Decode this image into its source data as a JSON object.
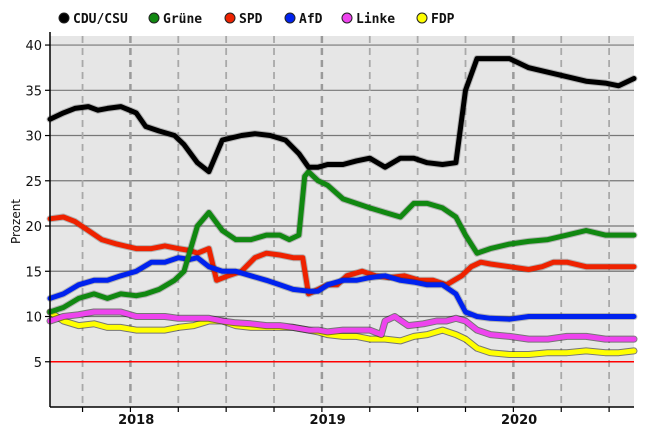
{
  "chart_data": {
    "type": "line",
    "title": "",
    "xlabel": "",
    "ylabel": "Prozent",
    "xlim": [
      2017.55,
      2020.6
    ],
    "ylim": [
      0,
      41
    ],
    "yticks": [
      5,
      10,
      15,
      20,
      25,
      30,
      35,
      40
    ],
    "xtick_labels": [
      {
        "label": "2018",
        "x": 2018.0
      },
      {
        "label": "2019",
        "x": 2019.0
      },
      {
        "label": "2020",
        "x": 2020.0
      }
    ],
    "vertical_dashed_lines": [
      2017.72,
      2017.97,
      2018.22,
      2018.47,
      2018.72,
      2018.97,
      2019.22,
      2019.47,
      2019.72,
      2019.97,
      2020.22,
      2020.47
    ],
    "reference_line": {
      "y": 5,
      "color": "#ff0000"
    },
    "background_color": "#e6e6e6",
    "legend_position": "top",
    "series": [
      {
        "name": "CDU/CSU",
        "color": "#000000",
        "x": [
          2017.55,
          2017.62,
          2017.68,
          2017.75,
          2017.8,
          2017.85,
          2017.92,
          2018.0,
          2018.05,
          2018.12,
          2018.2,
          2018.25,
          2018.32,
          2018.38,
          2018.45,
          2018.55,
          2018.62,
          2018.7,
          2018.78,
          2018.85,
          2018.9,
          2018.95,
          2019.0,
          2019.08,
          2019.15,
          2019.22,
          2019.3,
          2019.38,
          2019.45,
          2019.52,
          2019.6,
          2019.67,
          2019.72,
          2019.78,
          2019.85,
          2019.95,
          2020.05,
          2020.15,
          2020.25,
          2020.35,
          2020.45,
          2020.52,
          2020.6
        ],
        "y": [
          31.8,
          32.5,
          33.0,
          33.2,
          32.8,
          33.0,
          33.2,
          32.5,
          31.0,
          30.5,
          30.0,
          29.0,
          27.0,
          26.0,
          29.5,
          30.0,
          30.2,
          30.0,
          29.5,
          28.0,
          26.5,
          26.5,
          26.8,
          26.8,
          27.2,
          27.5,
          26.5,
          27.5,
          27.5,
          27.0,
          26.8,
          27.0,
          35.0,
          38.5,
          38.5,
          38.5,
          37.5,
          37.0,
          36.5,
          36.0,
          35.8,
          35.5,
          36.3
        ]
      },
      {
        "name": "Grüne",
        "color": "#118811",
        "x": [
          2017.55,
          2017.62,
          2017.7,
          2017.78,
          2017.85,
          2017.92,
          2018.0,
          2018.05,
          2018.12,
          2018.2,
          2018.25,
          2018.32,
          2018.38,
          2018.45,
          2018.52,
          2018.6,
          2018.68,
          2018.75,
          2018.8,
          2018.85,
          2018.88,
          2018.9,
          2018.95,
          2019.0,
          2019.08,
          2019.15,
          2019.22,
          2019.3,
          2019.38,
          2019.45,
          2019.52,
          2019.6,
          2019.67,
          2019.72,
          2019.78,
          2019.85,
          2019.95,
          2020.05,
          2020.15,
          2020.25,
          2020.35,
          2020.45,
          2020.52,
          2020.6
        ],
        "y": [
          10.5,
          11.0,
          12.0,
          12.5,
          12.0,
          12.5,
          12.3,
          12.5,
          13.0,
          14.0,
          15.0,
          20.0,
          21.5,
          19.5,
          18.5,
          18.5,
          19.0,
          19.0,
          18.5,
          19.0,
          25.5,
          26.0,
          25.0,
          24.5,
          23.0,
          22.5,
          22.0,
          21.5,
          21.0,
          22.5,
          22.5,
          22.0,
          21.0,
          19.0,
          17.0,
          17.5,
          18.0,
          18.3,
          18.5,
          19.0,
          19.5,
          19.0,
          19.0,
          19.0
        ]
      },
      {
        "name": "SPD",
        "color": "#ee2200",
        "x": [
          2017.55,
          2017.62,
          2017.68,
          2017.75,
          2017.82,
          2017.9,
          2018.0,
          2018.08,
          2018.15,
          2018.22,
          2018.28,
          2018.32,
          2018.38,
          2018.42,
          2018.48,
          2018.55,
          2018.62,
          2018.68,
          2018.75,
          2018.82,
          2018.87,
          2018.9,
          2018.95,
          2019.0,
          2019.05,
          2019.1,
          2019.18,
          2019.25,
          2019.32,
          2019.4,
          2019.48,
          2019.55,
          2019.62,
          2019.7,
          2019.75,
          2019.8,
          2019.85,
          2019.95,
          2020.05,
          2020.12,
          2020.18,
          2020.25,
          2020.35,
          2020.45,
          2020.52,
          2020.6
        ],
        "y": [
          20.8,
          21.0,
          20.5,
          19.5,
          18.5,
          18.0,
          17.5,
          17.5,
          17.8,
          17.5,
          17.3,
          17.0,
          17.5,
          14.0,
          14.5,
          15.0,
          16.5,
          17.0,
          16.8,
          16.5,
          16.5,
          12.5,
          13.0,
          13.5,
          13.5,
          14.5,
          15.0,
          14.5,
          14.3,
          14.5,
          14.0,
          14.0,
          13.5,
          14.5,
          15.5,
          16.0,
          15.8,
          15.5,
          15.2,
          15.5,
          16.0,
          16.0,
          15.5,
          15.5,
          15.5,
          15.5
        ]
      },
      {
        "name": "AfD",
        "color": "#0022ee",
        "x": [
          2017.55,
          2017.62,
          2017.7,
          2017.78,
          2017.85,
          2017.92,
          2018.0,
          2018.08,
          2018.15,
          2018.22,
          2018.28,
          2018.32,
          2018.38,
          2018.45,
          2018.52,
          2018.6,
          2018.68,
          2018.75,
          2018.82,
          2018.9,
          2018.95,
          2019.0,
          2019.08,
          2019.15,
          2019.22,
          2019.3,
          2019.38,
          2019.45,
          2019.52,
          2019.6,
          2019.67,
          2019.72,
          2019.78,
          2019.85,
          2019.95,
          2020.05,
          2020.15,
          2020.25,
          2020.35,
          2020.45,
          2020.52,
          2020.6
        ],
        "y": [
          12.0,
          12.5,
          13.5,
          14.0,
          14.0,
          14.5,
          15.0,
          16.0,
          16.0,
          16.5,
          16.3,
          16.5,
          15.5,
          15.0,
          15.0,
          14.5,
          14.0,
          13.5,
          13.0,
          12.8,
          12.8,
          13.5,
          14.0,
          14.0,
          14.3,
          14.5,
          14.0,
          13.8,
          13.5,
          13.5,
          12.5,
          10.5,
          10.0,
          9.8,
          9.7,
          10.0,
          10.0,
          10.0,
          10.0,
          10.0,
          10.0,
          10.0
        ]
      },
      {
        "name": "Linke",
        "color": "#ee44ee",
        "x": [
          2017.55,
          2017.62,
          2017.7,
          2017.78,
          2017.85,
          2017.92,
          2018.0,
          2018.08,
          2018.15,
          2018.22,
          2018.3,
          2018.38,
          2018.45,
          2018.52,
          2018.6,
          2018.68,
          2018.75,
          2018.82,
          2018.9,
          2018.95,
          2019.0,
          2019.08,
          2019.15,
          2019.22,
          2019.28,
          2019.3,
          2019.35,
          2019.42,
          2019.5,
          2019.57,
          2019.62,
          2019.67,
          2019.72,
          2019.78,
          2019.85,
          2019.95,
          2020.05,
          2020.15,
          2020.25,
          2020.35,
          2020.45,
          2020.52,
          2020.6
        ],
        "y": [
          9.5,
          10.0,
          10.2,
          10.5,
          10.5,
          10.5,
          10.0,
          10.0,
          10.0,
          9.8,
          9.8,
          9.8,
          9.5,
          9.3,
          9.2,
          9.0,
          9.0,
          8.8,
          8.5,
          8.5,
          8.3,
          8.5,
          8.5,
          8.5,
          8.0,
          9.5,
          10.0,
          9.0,
          9.2,
          9.5,
          9.5,
          9.8,
          9.5,
          8.5,
          8.0,
          7.8,
          7.5,
          7.5,
          7.8,
          7.8,
          7.5,
          7.5,
          7.5
        ]
      },
      {
        "name": "FDP",
        "color": "#ffff00",
        "x": [
          2017.55,
          2017.62,
          2017.7,
          2017.78,
          2017.85,
          2017.92,
          2018.0,
          2018.08,
          2018.15,
          2018.22,
          2018.3,
          2018.38,
          2018.45,
          2018.52,
          2018.6,
          2018.68,
          2018.75,
          2018.82,
          2018.9,
          2018.95,
          2019.0,
          2019.08,
          2019.15,
          2019.22,
          2019.3,
          2019.38,
          2019.45,
          2019.52,
          2019.6,
          2019.67,
          2019.72,
          2019.78,
          2019.85,
          2019.95,
          2020.05,
          2020.15,
          2020.25,
          2020.35,
          2020.45,
          2020.52,
          2020.6
        ],
        "y": [
          10.5,
          9.5,
          9.0,
          9.2,
          8.8,
          8.8,
          8.5,
          8.5,
          8.5,
          8.8,
          9.0,
          9.5,
          9.5,
          9.0,
          8.8,
          8.8,
          8.8,
          8.8,
          8.5,
          8.3,
          8.0,
          7.8,
          7.8,
          7.5,
          7.5,
          7.3,
          7.8,
          8.0,
          8.5,
          8.0,
          7.5,
          6.5,
          6.0,
          5.8,
          5.8,
          6.0,
          6.0,
          6.2,
          6.0,
          6.0,
          6.2
        ]
      }
    ]
  }
}
